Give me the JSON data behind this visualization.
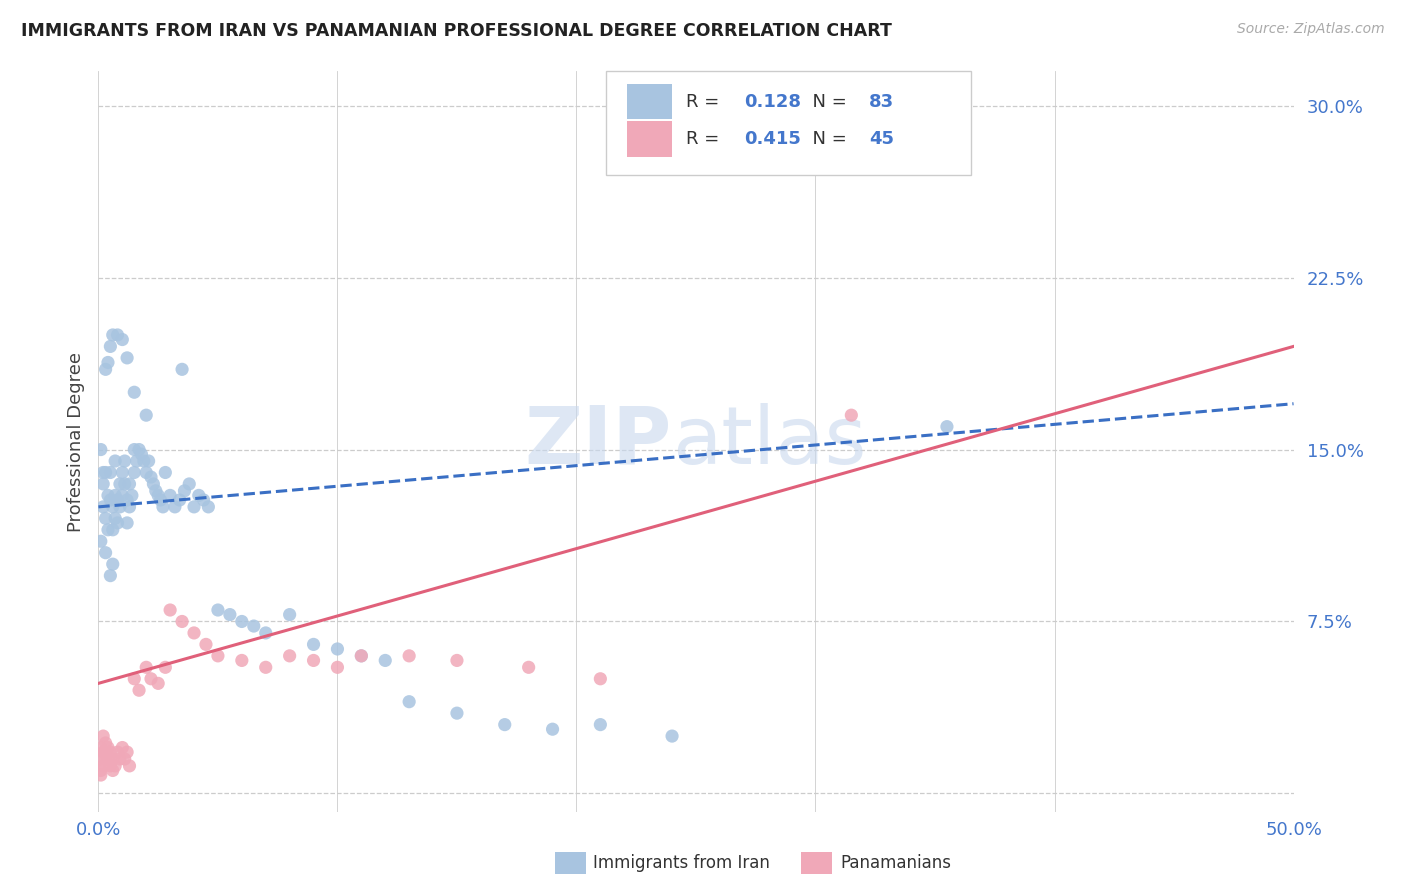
{
  "title": "IMMIGRANTS FROM IRAN VS PANAMANIAN PROFESSIONAL DEGREE CORRELATION CHART",
  "source": "Source: ZipAtlas.com",
  "ylabel": "Professional Degree",
  "xlim": [
    0.0,
    0.5
  ],
  "ylim": [
    -0.008,
    0.315
  ],
  "ytick_vals": [
    0.0,
    0.075,
    0.15,
    0.225,
    0.3
  ],
  "ytick_labels": [
    "",
    "7.5%",
    "15.0%",
    "22.5%",
    "30.0%"
  ],
  "xtick_vals": [
    0.0,
    0.1,
    0.2,
    0.3,
    0.4,
    0.5
  ],
  "xtick_labels": [
    "0.0%",
    "",
    "",
    "",
    "",
    "50.0%"
  ],
  "iran_R": 0.128,
  "iran_N": 83,
  "pan_R": 0.415,
  "pan_N": 45,
  "iran_color": "#a8c4e0",
  "pan_color": "#f0a8b8",
  "iran_line_color": "#3a6fc4",
  "pan_line_color": "#e0607a",
  "iran_line_y0": 0.125,
  "iran_line_y1": 0.17,
  "pan_line_y0": 0.048,
  "pan_line_y1": 0.195,
  "iran_points_x": [
    0.001,
    0.002,
    0.002,
    0.003,
    0.003,
    0.003,
    0.004,
    0.004,
    0.005,
    0.005,
    0.005,
    0.006,
    0.006,
    0.006,
    0.007,
    0.007,
    0.007,
    0.008,
    0.008,
    0.009,
    0.009,
    0.01,
    0.01,
    0.011,
    0.011,
    0.012,
    0.012,
    0.013,
    0.013,
    0.014,
    0.015,
    0.015,
    0.016,
    0.017,
    0.018,
    0.019,
    0.02,
    0.021,
    0.022,
    0.023,
    0.024,
    0.025,
    0.026,
    0.027,
    0.028,
    0.03,
    0.032,
    0.034,
    0.036,
    0.038,
    0.04,
    0.042,
    0.044,
    0.046,
    0.05,
    0.055,
    0.06,
    0.065,
    0.07,
    0.08,
    0.09,
    0.1,
    0.11,
    0.12,
    0.13,
    0.15,
    0.17,
    0.19,
    0.21,
    0.24,
    0.001,
    0.002,
    0.003,
    0.004,
    0.005,
    0.006,
    0.008,
    0.01,
    0.012,
    0.015,
    0.02,
    0.035,
    0.355
  ],
  "iran_points_y": [
    0.11,
    0.125,
    0.135,
    0.14,
    0.12,
    0.105,
    0.13,
    0.115,
    0.128,
    0.14,
    0.095,
    0.125,
    0.115,
    0.1,
    0.13,
    0.12,
    0.145,
    0.128,
    0.118,
    0.135,
    0.125,
    0.14,
    0.13,
    0.145,
    0.135,
    0.128,
    0.118,
    0.135,
    0.125,
    0.13,
    0.15,
    0.14,
    0.145,
    0.15,
    0.148,
    0.145,
    0.14,
    0.145,
    0.138,
    0.135,
    0.132,
    0.13,
    0.128,
    0.125,
    0.14,
    0.13,
    0.125,
    0.128,
    0.132,
    0.135,
    0.125,
    0.13,
    0.128,
    0.125,
    0.08,
    0.078,
    0.075,
    0.073,
    0.07,
    0.078,
    0.065,
    0.063,
    0.06,
    0.058,
    0.04,
    0.035,
    0.03,
    0.028,
    0.03,
    0.025,
    0.15,
    0.14,
    0.185,
    0.188,
    0.195,
    0.2,
    0.2,
    0.198,
    0.19,
    0.175,
    0.165,
    0.185,
    0.16
  ],
  "pan_points_x": [
    0.001,
    0.001,
    0.001,
    0.002,
    0.002,
    0.002,
    0.003,
    0.003,
    0.003,
    0.004,
    0.004,
    0.005,
    0.005,
    0.006,
    0.006,
    0.007,
    0.008,
    0.009,
    0.01,
    0.011,
    0.012,
    0.013,
    0.015,
    0.017,
    0.02,
    0.022,
    0.025,
    0.028,
    0.03,
    0.035,
    0.04,
    0.045,
    0.05,
    0.06,
    0.07,
    0.08,
    0.09,
    0.1,
    0.11,
    0.13,
    0.15,
    0.18,
    0.21,
    0.315,
    0.001
  ],
  "pan_points_y": [
    0.02,
    0.015,
    0.01,
    0.025,
    0.018,
    0.012,
    0.022,
    0.018,
    0.015,
    0.02,
    0.015,
    0.018,
    0.012,
    0.015,
    0.01,
    0.012,
    0.018,
    0.015,
    0.02,
    0.015,
    0.018,
    0.012,
    0.05,
    0.045,
    0.055,
    0.05,
    0.048,
    0.055,
    0.08,
    0.075,
    0.07,
    0.065,
    0.06,
    0.058,
    0.055,
    0.06,
    0.058,
    0.055,
    0.06,
    0.06,
    0.058,
    0.055,
    0.05,
    0.165,
    0.008
  ]
}
